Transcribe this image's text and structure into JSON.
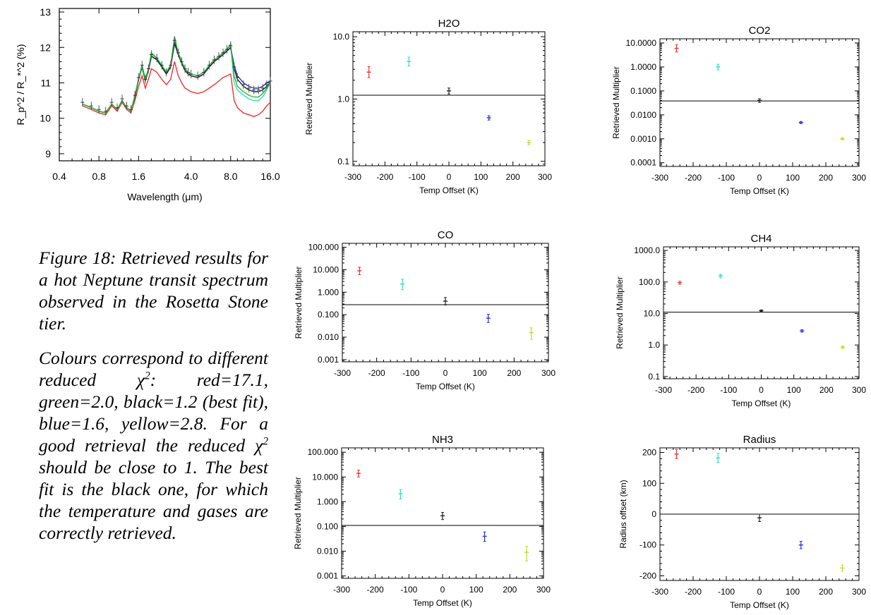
{
  "figure": {
    "caption_title": "Figure 18: Retrieved results for a hot Neptune transit spectrum observed in the Rosetta Stone tier.",
    "caption_body_before_chi": "Colours correspond to different reduced",
    "caption_body_after_chi": ": red=17.1, green=2.0, black=1.2 (best fit), blue=1.6, yellow=2.8. For a good retrieval the reduced",
    "caption_body_end": " should be close to 1. The best fit is the black one, for which the temperature and gases are correctly retrieved.",
    "chi_symbol": "χ",
    "chi_sup": "2"
  },
  "colors": {
    "red": "#ee3333",
    "cyan": "#33ddbb",
    "black": "#222222",
    "blue": "#2233dd",
    "yellow": "#bbdd22",
    "green": "#22bb33"
  },
  "chart_data": [
    {
      "id": "spectrum",
      "type": "line",
      "title": "",
      "xlabel": "Wavelength (μm)",
      "ylabel": "R_p^2 / R_*^2 (%)",
      "xscale": "log",
      "xlim": [
        0.4,
        16.0
      ],
      "ylim": [
        8.8,
        13.1
      ],
      "xticks": [
        0.4,
        0.8,
        1.6,
        4.0,
        8.0,
        16.0
      ],
      "xticklabels": [
        "0.4",
        "0.8",
        "1.6",
        "4.0",
        "8.0",
        "16.0"
      ],
      "yticks": [
        9,
        10,
        11,
        12,
        13
      ],
      "x": [
        0.6,
        0.7,
        0.8,
        0.9,
        1.0,
        1.1,
        1.2,
        1.3,
        1.4,
        1.5,
        1.6,
        1.7,
        1.8,
        1.9,
        2.0,
        2.2,
        2.4,
        2.6,
        2.8,
        3.0,
        3.2,
        3.4,
        3.6,
        3.8,
        4.0,
        4.5,
        5.0,
        5.5,
        6.0,
        6.5,
        7.0,
        7.5,
        8.0,
        8.5,
        9.0,
        10.0,
        11.0,
        12.0,
        13.0,
        14.0,
        15.0,
        16.0
      ],
      "series": [
        {
          "color": "cyan",
          "values": [
            10.4,
            10.3,
            10.2,
            10.15,
            10.4,
            10.25,
            10.5,
            10.3,
            10.2,
            10.65,
            11.15,
            11.5,
            11.1,
            11.4,
            11.8,
            11.7,
            11.5,
            11.3,
            11.5,
            12.2,
            11.85,
            11.6,
            11.4,
            11.3,
            11.25,
            11.2,
            11.3,
            11.5,
            11.65,
            11.75,
            11.85,
            11.95,
            12.05,
            11.0,
            10.8,
            10.65,
            10.55,
            10.5,
            10.5,
            10.6,
            10.8,
            11.0
          ]
        },
        {
          "color": "blue",
          "values": [
            10.4,
            10.3,
            10.2,
            10.15,
            10.4,
            10.25,
            10.5,
            10.3,
            10.2,
            10.6,
            11.1,
            11.45,
            11.1,
            11.35,
            11.75,
            11.65,
            11.45,
            11.25,
            11.45,
            12.1,
            11.8,
            11.55,
            11.35,
            11.25,
            11.2,
            11.15,
            11.25,
            11.45,
            11.6,
            11.7,
            11.8,
            11.9,
            12.0,
            11.5,
            11.2,
            11.0,
            10.9,
            10.85,
            10.85,
            10.9,
            11.0,
            11.05
          ]
        },
        {
          "color": "black",
          "values": [
            10.4,
            10.3,
            10.2,
            10.15,
            10.4,
            10.25,
            10.5,
            10.3,
            10.2,
            10.6,
            11.1,
            11.45,
            11.05,
            11.35,
            11.75,
            11.65,
            11.45,
            11.25,
            11.45,
            12.15,
            11.8,
            11.55,
            11.35,
            11.25,
            11.2,
            11.15,
            11.25,
            11.45,
            11.6,
            11.7,
            11.8,
            11.9,
            12.0,
            11.4,
            11.1,
            10.9,
            10.8,
            10.75,
            10.75,
            10.8,
            10.9,
            11.0
          ]
        },
        {
          "color": "red",
          "values": [
            10.35,
            10.25,
            10.15,
            10.1,
            10.35,
            10.2,
            10.45,
            10.25,
            10.15,
            10.5,
            10.9,
            11.2,
            10.85,
            11.1,
            11.4,
            11.3,
            11.1,
            10.95,
            11.1,
            11.6,
            11.2,
            11.0,
            10.85,
            10.8,
            10.75,
            10.7,
            10.75,
            10.85,
            10.95,
            11.05,
            11.15,
            11.2,
            11.25,
            10.5,
            10.3,
            10.15,
            10.1,
            10.05,
            10.1,
            10.2,
            10.35,
            10.45
          ]
        },
        {
          "color": "green",
          "values": [
            10.4,
            10.3,
            10.2,
            10.15,
            10.4,
            10.25,
            10.5,
            10.3,
            10.2,
            10.65,
            11.1,
            11.5,
            11.1,
            11.4,
            11.85,
            11.7,
            11.5,
            11.3,
            11.5,
            12.3,
            11.85,
            11.6,
            11.4,
            11.3,
            11.25,
            11.2,
            11.3,
            11.5,
            11.65,
            11.75,
            11.85,
            11.95,
            12.1,
            11.2,
            10.9,
            10.75,
            10.65,
            10.6,
            10.6,
            10.7,
            10.85,
            11.0
          ]
        }
      ]
    },
    {
      "id": "h2o",
      "type": "scatter",
      "title": "H2O",
      "xlabel": "Temp Offset (K)",
      "ylabel": "Retrieved Multiplier",
      "xlim": [
        -300,
        300
      ],
      "xticks": [
        -300,
        -200,
        -100,
        0,
        100,
        200,
        300
      ],
      "yscale": "log",
      "ylim": [
        0.085,
        12
      ],
      "yticks": [
        0.1,
        1.0,
        10.0
      ],
      "yticklabels": [
        "0.1",
        "1.0",
        "10.0"
      ],
      "hline": 1.15,
      "points": [
        {
          "x": -250,
          "y": 2.7,
          "err": [
            0.5,
            0.6
          ],
          "color": "red"
        },
        {
          "x": -125,
          "y": 4.0,
          "err": [
            0.6,
            0.7
          ],
          "color": "cyan"
        },
        {
          "x": 0,
          "y": 1.35,
          "err": [
            0.15,
            0.15
          ],
          "color": "black"
        },
        {
          "x": 125,
          "y": 0.5,
          "err": [
            0.04,
            0.04
          ],
          "color": "blue"
        },
        {
          "x": 250,
          "y": 0.2,
          "err": [
            0.015,
            0.015
          ],
          "color": "yellow"
        }
      ]
    },
    {
      "id": "co2",
      "type": "scatter",
      "title": "CO2",
      "xlabel": "Temp Offset (K)",
      "ylabel": "Retrieved Multiplier",
      "xlim": [
        -300,
        300
      ],
      "xticks": [
        -300,
        -200,
        -100,
        0,
        100,
        200,
        300
      ],
      "yscale": "log",
      "ylim": [
        7e-05,
        15
      ],
      "yticks": [
        0.0001,
        0.001,
        0.01,
        0.1,
        1,
        10
      ],
      "yticklabels": [
        "0.0001",
        "0.0010",
        "0.0100",
        "0.1000",
        "1.0000",
        "10.0000"
      ],
      "hline": 0.038,
      "points": [
        {
          "x": -250,
          "y": 6.0,
          "err": [
            1.8,
            2.5
          ],
          "color": "red"
        },
        {
          "x": -125,
          "y": 1.0,
          "err": [
            0.25,
            0.3
          ],
          "color": "cyan"
        },
        {
          "x": 0,
          "y": 0.04,
          "err": [
            0.007,
            0.007
          ],
          "color": "black"
        },
        {
          "x": 125,
          "y": 0.0048,
          "err": [
            0.0005,
            0.0005
          ],
          "color": "blue"
        },
        {
          "x": 250,
          "y": 0.001,
          "err": [
            0.0001,
            0.0001
          ],
          "color": "yellow"
        }
      ]
    },
    {
      "id": "co",
      "type": "scatter",
      "title": "CO",
      "xlabel": "Temp Offset (K)",
      "ylabel": "Retrieved Multiplier",
      "xlim": [
        -300,
        300
      ],
      "xticks": [
        -300,
        -200,
        -100,
        0,
        100,
        200,
        300
      ],
      "yscale": "log",
      "ylim": [
        0.0008,
        150
      ],
      "yticks": [
        0.001,
        0.01,
        0.1,
        1,
        10,
        100
      ],
      "yticklabels": [
        "0.001",
        "0.010",
        "0.100",
        "1.000",
        "10.000",
        "100.000"
      ],
      "hline": 0.28,
      "points": [
        {
          "x": -250,
          "y": 9.0,
          "err": [
            3.0,
            4.0
          ],
          "color": "red"
        },
        {
          "x": -125,
          "y": 2.3,
          "err": [
            1.0,
            1.5
          ],
          "color": "cyan"
        },
        {
          "x": 0,
          "y": 0.4,
          "err": [
            0.13,
            0.18
          ],
          "color": "black"
        },
        {
          "x": 125,
          "y": 0.07,
          "err": [
            0.025,
            0.035
          ],
          "color": "blue"
        },
        {
          "x": 250,
          "y": 0.016,
          "err": [
            0.008,
            0.01
          ],
          "color": "yellow"
        }
      ]
    },
    {
      "id": "ch4",
      "type": "scatter",
      "title": "CH4",
      "xlabel": "Temp Offset (K)",
      "ylabel": "Retrieved Multiplier",
      "xlim": [
        -300,
        300
      ],
      "xticks": [
        -300,
        -200,
        -100,
        0,
        100,
        200,
        300
      ],
      "yscale": "log",
      "ylim": [
        0.085,
        1300
      ],
      "yticks": [
        0.1,
        1,
        10,
        100,
        1000
      ],
      "yticklabels": [
        "0.1",
        "1.0",
        "10.0",
        "100.0",
        "1000.0"
      ],
      "hline": 11.0,
      "points": [
        {
          "x": -250,
          "y": 95,
          "err": [
            10,
            10
          ],
          "color": "red"
        },
        {
          "x": -125,
          "y": 155,
          "err": [
            20,
            20
          ],
          "color": "cyan"
        },
        {
          "x": 0,
          "y": 12.3,
          "err": [
            0.7,
            0.7
          ],
          "color": "black"
        },
        {
          "x": 125,
          "y": 2.8,
          "err": [
            0.25,
            0.25
          ],
          "color": "blue"
        },
        {
          "x": 250,
          "y": 0.85,
          "err": [
            0.08,
            0.08
          ],
          "color": "yellow"
        }
      ]
    },
    {
      "id": "nh3",
      "type": "scatter",
      "title": "NH3",
      "xlabel": "Temp Offset (K)",
      "ylabel": "Retrieved Multiplier",
      "xlim": [
        -300,
        300
      ],
      "xticks": [
        -300,
        -200,
        -100,
        0,
        100,
        200,
        300
      ],
      "yscale": "log",
      "ylim": [
        0.0008,
        150
      ],
      "yticks": [
        0.001,
        0.01,
        0.1,
        1,
        10,
        100
      ],
      "yticklabels": [
        "0.001",
        "0.010",
        "0.100",
        "1.000",
        "10.000",
        "100.000"
      ],
      "hline": 0.11,
      "points": [
        {
          "x": -250,
          "y": 14.0,
          "err": [
            4.0,
            5.0
          ],
          "color": "red"
        },
        {
          "x": -125,
          "y": 2.1,
          "err": [
            0.8,
            1.0
          ],
          "color": "cyan"
        },
        {
          "x": 0,
          "y": 0.27,
          "err": [
            0.08,
            0.1
          ],
          "color": "black"
        },
        {
          "x": 125,
          "y": 0.04,
          "err": [
            0.015,
            0.02
          ],
          "color": "blue"
        },
        {
          "x": 250,
          "y": 0.009,
          "err": [
            0.005,
            0.007
          ],
          "color": "yellow"
        }
      ]
    },
    {
      "id": "radius",
      "type": "scatter",
      "title": "Radius",
      "xlabel": "Temp Offset (K)",
      "ylabel": "Radius offset (km)",
      "xlim": [
        -300,
        300
      ],
      "xticks": [
        -300,
        -200,
        -100,
        0,
        100,
        200,
        300
      ],
      "yscale": "linear",
      "ylim": [
        -215,
        215
      ],
      "yticks": [
        -200,
        -100,
        0,
        100,
        200
      ],
      "yticklabels": [
        "-200",
        "-100",
        "0",
        "100",
        "200"
      ],
      "hline": 0,
      "points": [
        {
          "x": -250,
          "y": 195,
          "err": [
            15,
            15
          ],
          "color": "red"
        },
        {
          "x": -125,
          "y": 182,
          "err": [
            15,
            15
          ],
          "color": "cyan"
        },
        {
          "x": 0,
          "y": -12,
          "err": [
            12,
            12
          ],
          "color": "black"
        },
        {
          "x": 125,
          "y": -100,
          "err": [
            12,
            12
          ],
          "color": "blue"
        },
        {
          "x": 250,
          "y": -175,
          "err": [
            10,
            10
          ],
          "color": "yellow"
        }
      ]
    }
  ]
}
